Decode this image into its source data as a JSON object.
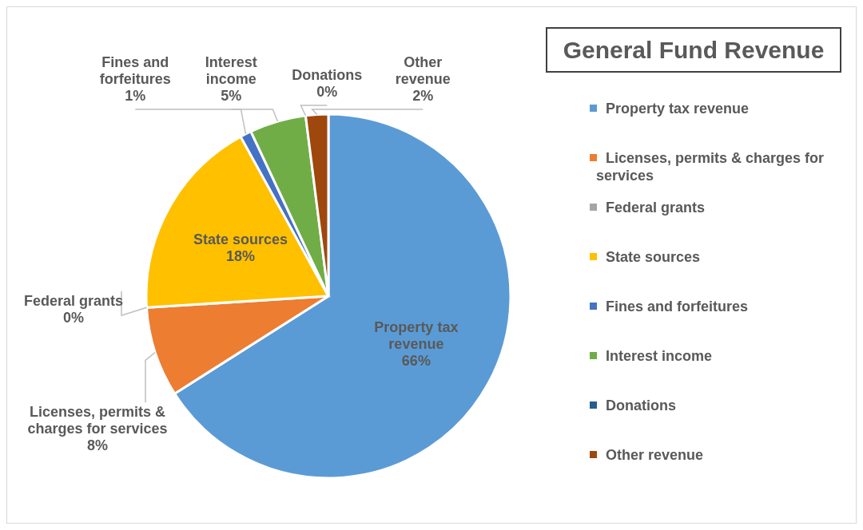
{
  "chart_data": {
    "type": "pie",
    "title": "General Fund Revenue",
    "categories": [
      "Property tax revenue",
      "Licenses, permits & charges for services",
      "Federal grants",
      "State sources",
      "Fines and forfeitures",
      "Interest income",
      "Donations",
      "Other revenue"
    ],
    "values": [
      66,
      8,
      0,
      18,
      1,
      5,
      0,
      2
    ],
    "value_labels": [
      "66%",
      "8%",
      "0%",
      "18%",
      "1%",
      "5%",
      "0%",
      "2%"
    ],
    "colors": [
      "#5b9bd5",
      "#ed7d31",
      "#a5a5a5",
      "#ffc000",
      "#4472c4",
      "#70ad47",
      "#255e91",
      "#9e480e"
    ],
    "legend": "right"
  }
}
